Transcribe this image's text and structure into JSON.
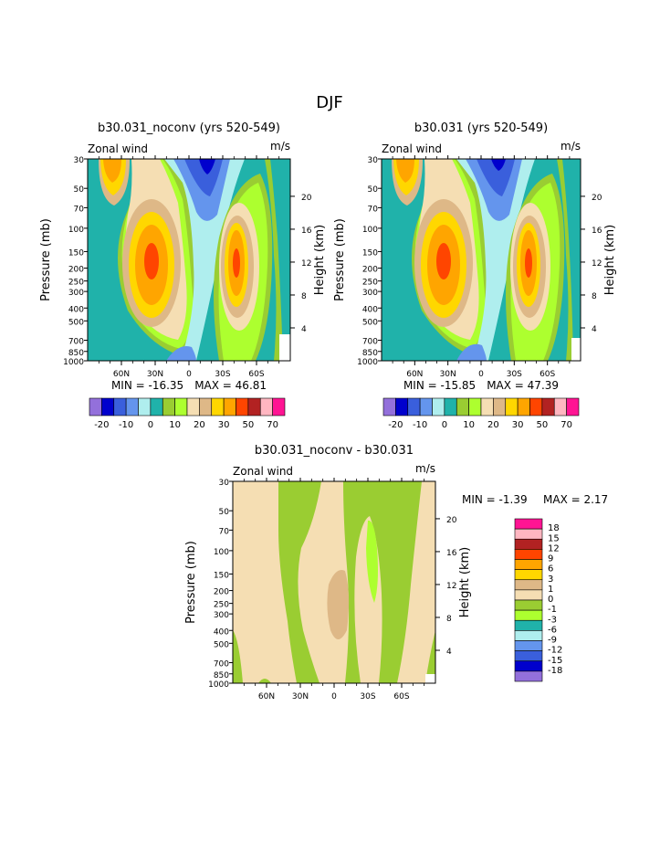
{
  "page_title": "DJF",
  "chart_data": [
    {
      "type": "heatmap",
      "title": "b30.031_noconv (yrs 520-549)",
      "subtitle_left": "Zonal wind",
      "subtitle_right": "m/s",
      "ylabel": "Pressure (mb)",
      "ylabel_right": "Height (km)",
      "x_ticks": [
        "60N",
        "30N",
        "0",
        "30S",
        "60S"
      ],
      "y_ticks": [
        "30",
        "50",
        "70",
        "100",
        "150",
        "200",
        "250",
        "300",
        "400",
        "500",
        "700",
        "850",
        "1000"
      ],
      "height_ticks": [
        "20",
        "16",
        "12",
        "8",
        "4"
      ],
      "min_label": "MIN = -16.35",
      "max_label": "MAX = 46.81",
      "levels": [
        -25,
        -20,
        -15,
        -10,
        -5,
        0,
        5,
        10,
        15,
        20,
        25,
        30,
        40,
        50,
        60,
        70
      ],
      "colorbar_labels": [
        "-20",
        "-10",
        "0",
        "10",
        "20",
        "30",
        "50",
        "70"
      ]
    },
    {
      "type": "heatmap",
      "title": "b30.031 (yrs 520-549)",
      "subtitle_left": "Zonal wind",
      "subtitle_right": "m/s",
      "ylabel": "Pressure (mb)",
      "ylabel_right": "Height (km)",
      "x_ticks": [
        "60N",
        "30N",
        "0",
        "30S",
        "60S"
      ],
      "y_ticks": [
        "30",
        "50",
        "70",
        "100",
        "150",
        "200",
        "250",
        "300",
        "400",
        "500",
        "700",
        "850",
        "1000"
      ],
      "height_ticks": [
        "20",
        "16",
        "12",
        "8",
        "4"
      ],
      "min_label": "MIN = -15.85",
      "max_label": "MAX = 47.39",
      "levels": [
        -25,
        -20,
        -15,
        -10,
        -5,
        0,
        5,
        10,
        15,
        20,
        25,
        30,
        40,
        50,
        60,
        70
      ],
      "colorbar_labels": [
        "-20",
        "-10",
        "0",
        "10",
        "20",
        "30",
        "50",
        "70"
      ]
    },
    {
      "type": "heatmap",
      "title": "b30.031_noconv - b30.031",
      "subtitle_left": "Zonal wind",
      "subtitle_right": "m/s",
      "ylabel": "Pressure (mb)",
      "ylabel_right": "Height (km)",
      "x_ticks": [
        "60N",
        "30N",
        "0",
        "30S",
        "60S"
      ],
      "y_ticks": [
        "30",
        "50",
        "70",
        "100",
        "150",
        "200",
        "250",
        "300",
        "400",
        "500",
        "700",
        "850",
        "1000"
      ],
      "height_ticks": [
        "20",
        "16",
        "12",
        "8",
        "4"
      ],
      "min_label": "MIN =   -1.39",
      "max_label": "MAX =    2.17",
      "levels": [
        18,
        15,
        12,
        9,
        6,
        3,
        1,
        0,
        -1,
        -3,
        -6,
        -9,
        -12,
        -15,
        -18
      ],
      "colorbar_labels": [
        "18",
        "15",
        "12",
        "9",
        "6",
        "3",
        "1",
        "0",
        "-1",
        "-3",
        "-6",
        "-9",
        "-12",
        "-15",
        "-18"
      ]
    }
  ],
  "colors": {
    "main_scale": [
      "#9370db",
      "#0000cd",
      "#3a5fdc",
      "#6495ed",
      "#afeeee",
      "#20b2aa",
      "#9acd32",
      "#adff2f",
      "#f5deb3",
      "#deb887",
      "#ffd700",
      "#ffa500",
      "#ff4500",
      "#b22222",
      "#ffb6c1",
      "#ff1493"
    ],
    "diff_scale": [
      "#ff1493",
      "#ffb6c1",
      "#b22222",
      "#ff4500",
      "#ffa500",
      "#ffd700",
      "#deb887",
      "#f5deb3",
      "#9acd32",
      "#adff2f",
      "#20b2aa",
      "#afeeee",
      "#6495ed",
      "#3a5fdc",
      "#0000cd",
      "#9370db"
    ]
  }
}
